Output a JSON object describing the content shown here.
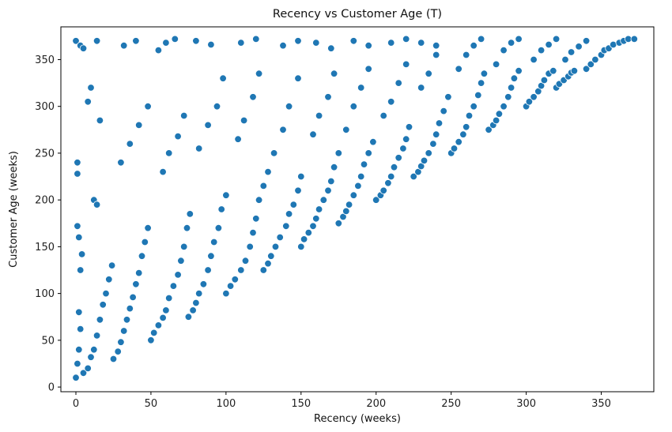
{
  "chart_data": {
    "type": "scatter",
    "title": "Recency vs Customer Age (T)",
    "xlabel": "Recency (weeks)",
    "ylabel": "Customer Age (weeks)",
    "xlim": [
      -10,
      385
    ],
    "ylim": [
      -5,
      385
    ],
    "x_ticks": [
      0,
      50,
      100,
      150,
      200,
      250,
      300,
      350
    ],
    "y_ticks": [
      0,
      50,
      100,
      150,
      200,
      250,
      300,
      350
    ],
    "grid": false,
    "legend": "none",
    "point_color": "#1f77b4",
    "points": [
      [
        0,
        10
      ],
      [
        1,
        25
      ],
      [
        2,
        40
      ],
      [
        3,
        62
      ],
      [
        2,
        80
      ],
      [
        1,
        240
      ],
      [
        1,
        228
      ],
      [
        1,
        172
      ],
      [
        2,
        160
      ],
      [
        3,
        125
      ],
      [
        4,
        142
      ],
      [
        0,
        370
      ],
      [
        3,
        365
      ],
      [
        5,
        362
      ],
      [
        5,
        15
      ],
      [
        8,
        20
      ],
      [
        10,
        32
      ],
      [
        12,
        40
      ],
      [
        14,
        55
      ],
      [
        16,
        72
      ],
      [
        18,
        88
      ],
      [
        20,
        100
      ],
      [
        22,
        115
      ],
      [
        24,
        130
      ],
      [
        12,
        200
      ],
      [
        14,
        195
      ],
      [
        16,
        285
      ],
      [
        8,
        305
      ],
      [
        10,
        320
      ],
      [
        14,
        370
      ],
      [
        25,
        30
      ],
      [
        28,
        38
      ],
      [
        30,
        48
      ],
      [
        32,
        60
      ],
      [
        34,
        72
      ],
      [
        36,
        84
      ],
      [
        38,
        96
      ],
      [
        40,
        110
      ],
      [
        42,
        122
      ],
      [
        44,
        140
      ],
      [
        46,
        155
      ],
      [
        48,
        170
      ],
      [
        30,
        240
      ],
      [
        36,
        260
      ],
      [
        42,
        280
      ],
      [
        48,
        300
      ],
      [
        32,
        365
      ],
      [
        40,
        370
      ],
      [
        50,
        50
      ],
      [
        52,
        58
      ],
      [
        55,
        66
      ],
      [
        58,
        74
      ],
      [
        60,
        82
      ],
      [
        62,
        95
      ],
      [
        65,
        108
      ],
      [
        68,
        120
      ],
      [
        70,
        135
      ],
      [
        72,
        150
      ],
      [
        74,
        170
      ],
      [
        76,
        185
      ],
      [
        58,
        230
      ],
      [
        62,
        250
      ],
      [
        68,
        268
      ],
      [
        72,
        290
      ],
      [
        55,
        360
      ],
      [
        60,
        368
      ],
      [
        66,
        372
      ],
      [
        75,
        75
      ],
      [
        78,
        82
      ],
      [
        80,
        90
      ],
      [
        82,
        100
      ],
      [
        85,
        110
      ],
      [
        88,
        125
      ],
      [
        90,
        140
      ],
      [
        92,
        155
      ],
      [
        95,
        170
      ],
      [
        97,
        190
      ],
      [
        100,
        205
      ],
      [
        82,
        255
      ],
      [
        88,
        280
      ],
      [
        94,
        300
      ],
      [
        98,
        330
      ],
      [
        80,
        370
      ],
      [
        90,
        366
      ],
      [
        100,
        100
      ],
      [
        103,
        108
      ],
      [
        106,
        115
      ],
      [
        110,
        125
      ],
      [
        113,
        135
      ],
      [
        116,
        150
      ],
      [
        118,
        165
      ],
      [
        120,
        180
      ],
      [
        122,
        200
      ],
      [
        125,
        215
      ],
      [
        128,
        230
      ],
      [
        108,
        265
      ],
      [
        112,
        285
      ],
      [
        118,
        310
      ],
      [
        122,
        335
      ],
      [
        110,
        368
      ],
      [
        120,
        372
      ],
      [
        125,
        125
      ],
      [
        128,
        132
      ],
      [
        130,
        140
      ],
      [
        133,
        150
      ],
      [
        136,
        160
      ],
      [
        140,
        172
      ],
      [
        142,
        185
      ],
      [
        145,
        195
      ],
      [
        148,
        210
      ],
      [
        150,
        225
      ],
      [
        132,
        250
      ],
      [
        138,
        275
      ],
      [
        142,
        300
      ],
      [
        148,
        330
      ],
      [
        138,
        365
      ],
      [
        148,
        370
      ],
      [
        150,
        150
      ],
      [
        152,
        158
      ],
      [
        155,
        165
      ],
      [
        158,
        172
      ],
      [
        160,
        180
      ],
      [
        162,
        190
      ],
      [
        165,
        200
      ],
      [
        168,
        210
      ],
      [
        170,
        220
      ],
      [
        172,
        235
      ],
      [
        175,
        250
      ],
      [
        158,
        270
      ],
      [
        162,
        290
      ],
      [
        168,
        310
      ],
      [
        172,
        335
      ],
      [
        160,
        368
      ],
      [
        170,
        362
      ],
      [
        175,
        175
      ],
      [
        178,
        182
      ],
      [
        180,
        188
      ],
      [
        182,
        195
      ],
      [
        185,
        205
      ],
      [
        188,
        215
      ],
      [
        190,
        225
      ],
      [
        192,
        238
      ],
      [
        195,
        250
      ],
      [
        198,
        262
      ],
      [
        180,
        275
      ],
      [
        185,
        300
      ],
      [
        190,
        320
      ],
      [
        195,
        340
      ],
      [
        185,
        370
      ],
      [
        195,
        365
      ],
      [
        200,
        200
      ],
      [
        203,
        205
      ],
      [
        205,
        210
      ],
      [
        208,
        218
      ],
      [
        210,
        225
      ],
      [
        212,
        235
      ],
      [
        215,
        245
      ],
      [
        218,
        255
      ],
      [
        220,
        265
      ],
      [
        222,
        278
      ],
      [
        205,
        290
      ],
      [
        210,
        305
      ],
      [
        215,
        325
      ],
      [
        220,
        345
      ],
      [
        210,
        368
      ],
      [
        220,
        372
      ],
      [
        225,
        225
      ],
      [
        228,
        230
      ],
      [
        230,
        236
      ],
      [
        232,
        242
      ],
      [
        235,
        250
      ],
      [
        238,
        260
      ],
      [
        240,
        270
      ],
      [
        242,
        282
      ],
      [
        245,
        295
      ],
      [
        248,
        310
      ],
      [
        230,
        320
      ],
      [
        235,
        335
      ],
      [
        240,
        355
      ],
      [
        230,
        368
      ],
      [
        240,
        365
      ],
      [
        250,
        250
      ],
      [
        252,
        255
      ],
      [
        255,
        262
      ],
      [
        258,
        270
      ],
      [
        260,
        278
      ],
      [
        262,
        290
      ],
      [
        265,
        300
      ],
      [
        268,
        312
      ],
      [
        270,
        325
      ],
      [
        272,
        335
      ],
      [
        255,
        340
      ],
      [
        260,
        355
      ],
      [
        265,
        365
      ],
      [
        270,
        372
      ],
      [
        275,
        275
      ],
      [
        278,
        280
      ],
      [
        280,
        285
      ],
      [
        282,
        292
      ],
      [
        285,
        300
      ],
      [
        288,
        310
      ],
      [
        290,
        320
      ],
      [
        292,
        330
      ],
      [
        295,
        338
      ],
      [
        280,
        345
      ],
      [
        285,
        360
      ],
      [
        290,
        368
      ],
      [
        295,
        372
      ],
      [
        300,
        300
      ],
      [
        302,
        305
      ],
      [
        305,
        310
      ],
      [
        308,
        316
      ],
      [
        310,
        322
      ],
      [
        312,
        328
      ],
      [
        315,
        335
      ],
      [
        318,
        338
      ],
      [
        305,
        350
      ],
      [
        310,
        360
      ],
      [
        315,
        366
      ],
      [
        320,
        372
      ],
      [
        320,
        320
      ],
      [
        322,
        324
      ],
      [
        325,
        328
      ],
      [
        328,
        332
      ],
      [
        330,
        336
      ],
      [
        332,
        338
      ],
      [
        326,
        350
      ],
      [
        330,
        358
      ],
      [
        335,
        364
      ],
      [
        340,
        370
      ],
      [
        340,
        340
      ],
      [
        343,
        345
      ],
      [
        346,
        350
      ],
      [
        350,
        355
      ],
      [
        352,
        360
      ],
      [
        355,
        362
      ],
      [
        358,
        366
      ],
      [
        362,
        368
      ],
      [
        365,
        370
      ],
      [
        368,
        372
      ],
      [
        372,
        372
      ]
    ]
  }
}
